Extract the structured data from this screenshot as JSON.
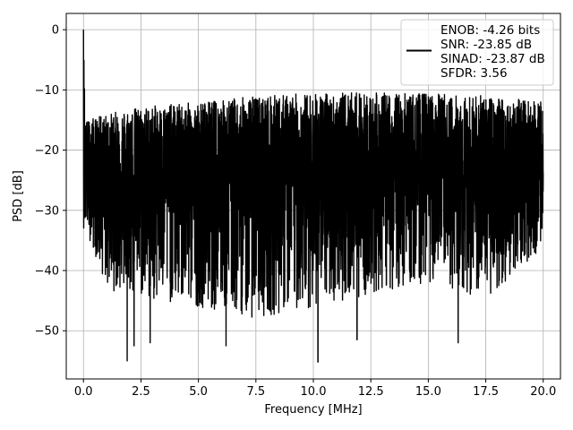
{
  "chart_data": {
    "type": "line",
    "title": "",
    "xlabel": "Frequency [MHz]",
    "ylabel": "PSD [dB]",
    "xlim": [
      -0.75,
      20.75
    ],
    "ylim": [
      -58,
      2.7
    ],
    "xticks": [
      0.0,
      2.5,
      5.0,
      7.5,
      10.0,
      12.5,
      15.0,
      17.5,
      20.0
    ],
    "xtick_labels": [
      "0.0",
      "2.5",
      "5.0",
      "7.5",
      "10.0",
      "12.5",
      "15.0",
      "17.5",
      "20.0"
    ],
    "yticks": [
      0,
      -10,
      -20,
      -30,
      -40,
      -50
    ],
    "ytick_labels": [
      "0",
      "−10",
      "−20",
      "−30",
      "−40",
      "−50"
    ],
    "grid": true,
    "legend": {
      "placement": "top-right",
      "entries": [
        "ENOB: -4.26 bits",
        "SNR: -23.85 dB",
        "SINAD: -23.87 dB",
        "SFDR: 3.56"
      ]
    },
    "series": [
      {
        "color": "#000000",
        "description_of_shape": "dense noise-like PSD from 0 to 20 MHz",
        "peak": {
          "x": 0.0,
          "y": 0.0
        },
        "upper_envelope_approx": [
          [
            0.0,
            0.0
          ],
          [
            0.1,
            -15
          ],
          [
            2.0,
            -13
          ],
          [
            5.0,
            -12
          ],
          [
            7.5,
            -11
          ],
          [
            10.0,
            -10.5
          ],
          [
            12.5,
            -10.5
          ],
          [
            15.0,
            -10.5
          ],
          [
            17.5,
            -11
          ],
          [
            20.0,
            -12
          ]
        ],
        "lower_envelope_approx": [
          [
            0.1,
            -33
          ],
          [
            1.0,
            -43
          ],
          [
            2.5,
            -45
          ],
          [
            5.0,
            -46
          ],
          [
            7.5,
            -48
          ],
          [
            10.0,
            -46
          ],
          [
            12.5,
            -44
          ],
          [
            15.0,
            -42
          ],
          [
            17.5,
            -45
          ],
          [
            20.0,
            -36
          ]
        ],
        "deep_dips": [
          [
            1.9,
            -55
          ],
          [
            2.2,
            -52.5
          ],
          [
            2.9,
            -52
          ],
          [
            6.2,
            -52.5
          ],
          [
            10.2,
            -55.2
          ],
          [
            11.9,
            -51.5
          ],
          [
            16.3,
            -52
          ]
        ]
      }
    ]
  }
}
